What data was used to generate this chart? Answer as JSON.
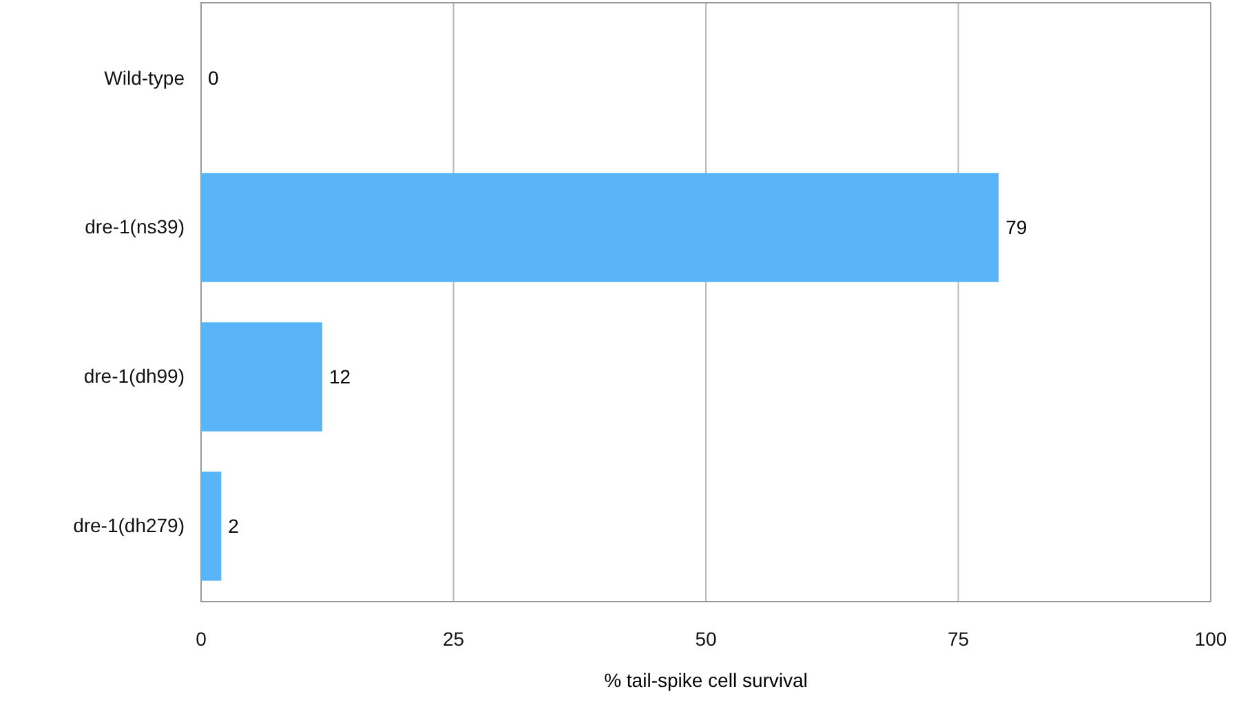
{
  "chart_data": {
    "type": "bar",
    "orientation": "horizontal",
    "xlabel": "% tail-spike cell survival",
    "categories": [
      "Wild-type",
      "dre-1(ns39)",
      "dre-1(dh99)",
      "dre-1(dh279)"
    ],
    "values": [
      0,
      79,
      12,
      2
    ],
    "color": "#5ab4f8",
    "xlim": [
      0,
      100
    ],
    "xticks": [
      0,
      25,
      50,
      75,
      100
    ],
    "grid": "x",
    "data_labels": true
  }
}
